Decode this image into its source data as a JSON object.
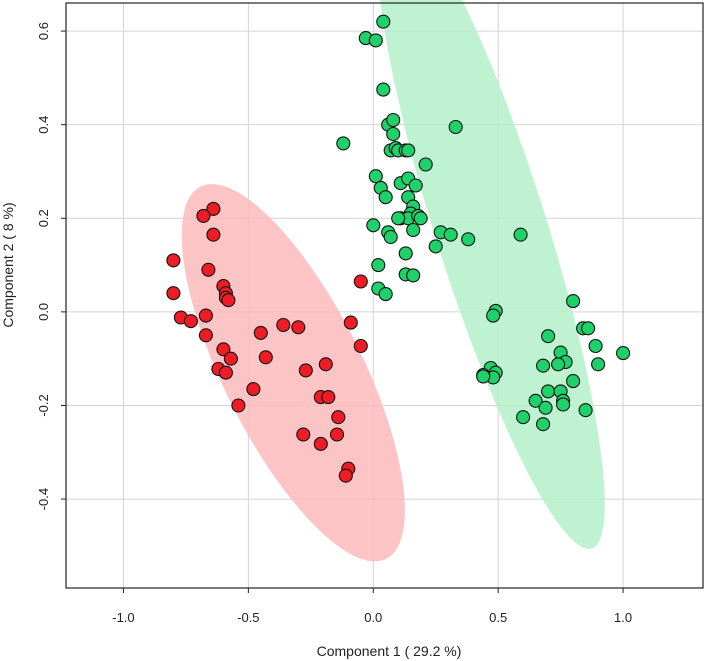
{
  "chart_data": {
    "type": "scatter",
    "title": "",
    "xlabel": "Component 1 ( 29.2 %)",
    "ylabel": "Component 2 ( 8 %)",
    "xlim": [
      -1.23,
      1.32
    ],
    "ylim": [
      -0.59,
      0.66
    ],
    "grid": true,
    "legend": "none",
    "x_ticks": [
      -1.0,
      -0.5,
      0.0,
      0.5,
      1.0
    ],
    "x_tick_labels": [
      "-1.0",
      "-0.5",
      "0.0",
      "0.5",
      "1.0"
    ],
    "y_ticks": [
      -0.4,
      -0.2,
      0.0,
      0.2,
      0.4,
      0.6
    ],
    "y_tick_labels": [
      "-0.4",
      "-0.2",
      "0.0",
      "0.2",
      "0.4",
      "0.6"
    ],
    "ellipses": [
      {
        "name": "red-group",
        "center": [
          -0.32,
          -0.13
        ],
        "semi_major": 0.56,
        "semi_minor": 0.22,
        "angle_deg": -41,
        "color": "#fbbaba"
      },
      {
        "name": "green-group",
        "center": [
          0.47,
          0.18
        ],
        "semi_major": 0.8,
        "semi_minor": 0.2,
        "angle_deg": -58,
        "color": "#b3f0c8"
      }
    ],
    "series": [
      {
        "name": "red",
        "color": "#ee1d25",
        "points": [
          [
            -0.64,
            0.22
          ],
          [
            -0.68,
            0.205
          ],
          [
            -0.64,
            0.165
          ],
          [
            -0.8,
            0.11
          ],
          [
            -0.66,
            0.09
          ],
          [
            -0.6,
            0.055
          ],
          [
            -0.59,
            0.04
          ],
          [
            -0.59,
            0.03
          ],
          [
            -0.58,
            0.025
          ],
          [
            -0.8,
            0.04
          ],
          [
            -0.77,
            -0.012
          ],
          [
            -0.73,
            -0.02
          ],
          [
            -0.67,
            -0.008
          ],
          [
            -0.67,
            -0.05
          ],
          [
            -0.6,
            -0.08
          ],
          [
            -0.57,
            -0.1
          ],
          [
            -0.62,
            -0.122
          ],
          [
            -0.59,
            -0.13
          ],
          [
            -0.54,
            -0.2
          ],
          [
            -0.48,
            -0.165
          ],
          [
            -0.45,
            -0.045
          ],
          [
            -0.43,
            -0.097
          ],
          [
            -0.36,
            -0.028
          ],
          [
            -0.3,
            -0.033
          ],
          [
            -0.27,
            -0.125
          ],
          [
            -0.28,
            -0.262
          ],
          [
            -0.21,
            -0.182
          ],
          [
            -0.21,
            -0.282
          ],
          [
            -0.19,
            -0.112
          ],
          [
            -0.18,
            -0.182
          ],
          [
            -0.14,
            -0.225
          ],
          [
            -0.145,
            -0.262
          ],
          [
            -0.1,
            -0.335
          ],
          [
            -0.11,
            -0.35
          ],
          [
            -0.09,
            -0.023
          ],
          [
            -0.05,
            -0.073
          ],
          [
            -0.05,
            0.065
          ]
        ]
      },
      {
        "name": "green",
        "color": "#1fd16a",
        "points": [
          [
            0.04,
            0.62
          ],
          [
            -0.03,
            0.585
          ],
          [
            0.01,
            0.58
          ],
          [
            0.04,
            0.475
          ],
          [
            0.06,
            0.4
          ],
          [
            0.08,
            0.41
          ],
          [
            0.08,
            0.38
          ],
          [
            0.07,
            0.345
          ],
          [
            0.09,
            0.35
          ],
          [
            0.1,
            0.345
          ],
          [
            0.13,
            0.345
          ],
          [
            0.14,
            0.345
          ],
          [
            0.33,
            0.395
          ],
          [
            -0.12,
            0.36
          ],
          [
            0.21,
            0.315
          ],
          [
            0.01,
            0.29
          ],
          [
            0.11,
            0.275
          ],
          [
            0.14,
            0.285
          ],
          [
            0.17,
            0.27
          ],
          [
            0.03,
            0.265
          ],
          [
            0.05,
            0.245
          ],
          [
            0.14,
            0.245
          ],
          [
            0.16,
            0.225
          ],
          [
            0.15,
            0.21
          ],
          [
            0.11,
            0.2
          ],
          [
            0.14,
            0.2
          ],
          [
            0.18,
            0.205
          ],
          [
            0.19,
            0.2
          ],
          [
            0.1,
            0.2
          ],
          [
            0.0,
            0.185
          ],
          [
            0.06,
            0.17
          ],
          [
            0.07,
            0.16
          ],
          [
            0.16,
            0.175
          ],
          [
            0.27,
            0.17
          ],
          [
            0.31,
            0.165
          ],
          [
            0.25,
            0.14
          ],
          [
            0.38,
            0.155
          ],
          [
            0.59,
            0.165
          ],
          [
            0.13,
            0.125
          ],
          [
            0.02,
            0.1
          ],
          [
            0.13,
            0.08
          ],
          [
            0.16,
            0.078
          ],
          [
            0.02,
            0.05
          ],
          [
            0.05,
            0.038
          ],
          [
            0.49,
            0.002
          ],
          [
            0.48,
            -0.008
          ],
          [
            0.7,
            -0.052
          ],
          [
            0.8,
            0.023
          ],
          [
            0.84,
            -0.035
          ],
          [
            0.86,
            -0.035
          ],
          [
            0.89,
            -0.073
          ],
          [
            1.0,
            -0.088
          ],
          [
            0.75,
            -0.087
          ],
          [
            0.77,
            -0.107
          ],
          [
            0.68,
            -0.115
          ],
          [
            0.74,
            -0.112
          ],
          [
            0.47,
            -0.12
          ],
          [
            0.49,
            -0.13
          ],
          [
            0.48,
            -0.14
          ],
          [
            0.44,
            -0.135
          ],
          [
            0.44,
            -0.138
          ],
          [
            0.8,
            -0.148
          ],
          [
            0.9,
            -0.112
          ],
          [
            0.7,
            -0.17
          ],
          [
            0.75,
            -0.17
          ],
          [
            0.76,
            -0.19
          ],
          [
            0.76,
            -0.198
          ],
          [
            0.65,
            -0.19
          ],
          [
            0.69,
            -0.205
          ],
          [
            0.6,
            -0.225
          ],
          [
            0.68,
            -0.24
          ],
          [
            0.85,
            -0.21
          ]
        ]
      }
    ]
  }
}
